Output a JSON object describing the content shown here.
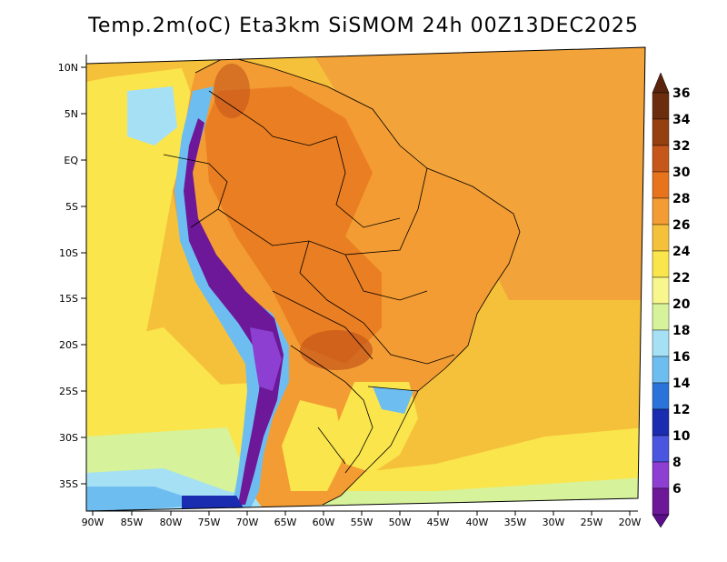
{
  "title": "Temp.2m(oC) Eta3km SiSMOM 24h 00Z13DEC2025",
  "lat_axis": [
    "10N",
    "5N",
    "EQ",
    "5S",
    "10S",
    "15S",
    "20S",
    "25S",
    "30S",
    "35S"
  ],
  "lon_axis": [
    "90W",
    "85W",
    "80W",
    "75W",
    "70W",
    "65W",
    "60W",
    "55W",
    "50W",
    "45W",
    "40W",
    "35W",
    "30W",
    "25W",
    "20W"
  ],
  "colorbar": {
    "labels": [
      "36",
      "34",
      "32",
      "30",
      "28",
      "26",
      "24",
      "22",
      "20",
      "18",
      "16",
      "14",
      "12",
      "10",
      "8",
      "6"
    ],
    "colors": [
      "#6b2d0e",
      "#94400f",
      "#c5571a",
      "#e7741d",
      "#f39c33",
      "#f6c13a",
      "#fae54c",
      "#f7f78e",
      "#d6f29a",
      "#a6e0f5",
      "#6ebdf0",
      "#2a73d9",
      "#1a2db0",
      "#4a55e0",
      "#8c3fd0",
      "#6d1799"
    ],
    "top_color": "#5a240d",
    "bottom_color": "#5a0f88"
  }
}
